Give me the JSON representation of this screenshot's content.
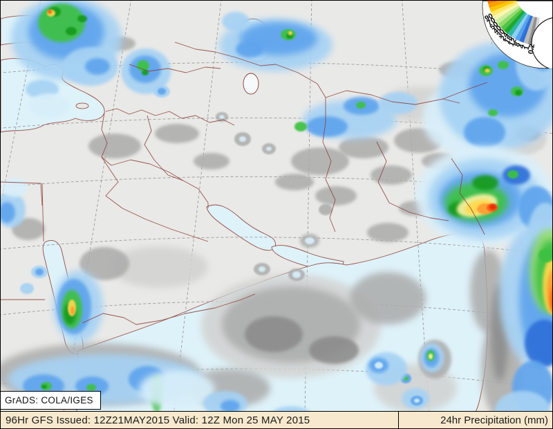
{
  "legend": {
    "tick_labels": [
      "90",
      "70",
      "50",
      "40",
      "30",
      "24",
      "18",
      "12",
      "8",
      "4",
      "1",
      "0.2"
    ],
    "band_colors": [
      "#6f0000",
      "#a30000",
      "#d40e00",
      "#ee4400",
      "#fc7300",
      "#ff9f00",
      "#ffc800",
      "#ffe76a",
      "#f9f6b0",
      "#cdeca0",
      "#93db6e",
      "#50c348",
      "#1ea92d",
      "#2fb7a6",
      "#8ed0f2",
      "#58a2ec",
      "#2d71d9",
      "#bcbcbc",
      "#909090",
      "#d8d8d8"
    ],
    "background": "#ffffff",
    "outline_color": "#000000",
    "label_color": "#000000"
  },
  "footer": {
    "credit": "GrADS: COLA/IGES",
    "issued": "96Hr GFS Issued: 12Z21MAY2015 Valid: 12Z Mon 25 MAY 2015",
    "product": "24hr Precipitation (mm)",
    "bar_color": "#f7e9cd",
    "text_color": "#1a1a1a"
  },
  "map": {
    "land_color": "#e9e9e7",
    "ocean_color": "#def2f9",
    "lake_color": "#f6fafa",
    "coast_color": "#8a3a32",
    "graticule_color": "#9b9b9b",
    "palette": {
      "g1": "#d2d2d0",
      "g2": "#ababab",
      "g3": "#8a8a8a",
      "b0": "#d8effa",
      "b1": "#a6d2f4",
      "b2": "#5fa4ed",
      "b3": "#2e6fd9",
      "gr1": "#9bdf70",
      "gr2": "#3ec142",
      "gr3": "#149a1c",
      "y1": "#f9f3a2",
      "y2": "#ffd84e",
      "o1": "#ff9c32",
      "o2": "#f85d10",
      "r1": "#e92c0c",
      "r2": "#b00000"
    },
    "precip_blobs": [
      [
        "g1",
        420,
        470,
        130,
        75
      ],
      [
        "g2",
        420,
        468,
        100,
        55
      ],
      [
        "g3",
        395,
        482,
        42,
        26
      ],
      [
        "g3",
        482,
        505,
        36,
        20
      ],
      [
        "g2",
        560,
        430,
        55,
        38
      ],
      [
        "g1",
        230,
        385,
        70,
        30
      ],
      [
        "g2",
        150,
        380,
        36,
        24
      ],
      [
        "g2",
        40,
        330,
        24,
        16
      ],
      [
        "g2",
        165,
        210,
        38,
        18
      ],
      [
        "g2",
        255,
        192,
        32,
        14
      ],
      [
        "g2",
        305,
        232,
        26,
        12
      ],
      [
        "g2",
        462,
        232,
        42,
        20
      ],
      [
        "g2",
        525,
        212,
        36,
        16
      ],
      [
        "g2",
        565,
        252,
        30,
        14
      ],
      [
        "g2",
        605,
        202,
        36,
        18
      ],
      [
        "g2",
        635,
        232,
        26,
        12
      ],
      [
        "g2",
        425,
        262,
        28,
        12
      ],
      [
        "g2",
        485,
        282,
        30,
        14
      ],
      [
        "g1",
        610,
        150,
        60,
        26
      ],
      [
        "g2",
        660,
        100,
        26,
        12
      ],
      [
        "g2",
        175,
        62,
        20,
        10
      ],
      [
        "g1",
        750,
        200,
        40,
        24
      ],
      [
        "g3",
        762,
        192,
        18,
        10
      ],
      [
        "g2",
        560,
        335,
        30,
        14
      ],
      [
        "g2",
        600,
        300,
        24,
        11
      ],
      [
        "g2",
        705,
        420,
        26,
        60
      ],
      [
        "g2",
        725,
        530,
        30,
        75
      ],
      [
        "g3",
        722,
        480,
        13,
        70
      ],
      [
        "g2",
        140,
        540,
        150,
        45
      ],
      [
        "g2",
        330,
        560,
        60,
        28
      ],
      [
        "g1",
        600,
        560,
        60,
        35
      ],
      [
        "g2",
        628,
        518,
        24,
        28
      ],
      [
        "g2",
        350,
        200,
        12,
        10
      ],
      [
        "g2",
        388,
        214,
        10,
        8
      ],
      [
        "g2",
        320,
        168,
        9,
        7
      ],
      [
        "g2",
        378,
        388,
        12,
        9
      ],
      [
        "g2",
        428,
        396,
        12,
        9
      ],
      [
        "g2",
        447,
        347,
        14,
        10
      ],
      [
        "g2",
        470,
        302,
        10,
        8
      ],
      [
        "b0",
        680,
        170,
        70,
        55
      ],
      [
        "b1",
        722,
        138,
        88,
        78
      ],
      [
        "b2",
        733,
        122,
        56,
        46
      ],
      [
        "b2",
        700,
        190,
        30,
        22
      ],
      [
        "b1",
        775,
        90,
        30,
        40
      ],
      [
        "b2",
        785,
        75,
        20,
        26
      ],
      [
        "b1",
        95,
        55,
        80,
        60
      ],
      [
        "b2",
        95,
        45,
        55,
        40
      ],
      [
        "gr2",
        88,
        32,
        34,
        28
      ],
      [
        "gr3",
        78,
        16,
        9,
        7
      ],
      [
        "gr3",
        102,
        44,
        8,
        6
      ],
      [
        "gr3",
        118,
        26,
        7,
        5
      ],
      [
        "y2",
        73,
        18,
        6,
        5
      ],
      [
        "o2",
        71,
        16,
        3,
        3
      ],
      [
        "b1",
        130,
        95,
        40,
        28
      ],
      [
        "b2",
        140,
        95,
        18,
        12
      ],
      [
        "b1",
        60,
        128,
        24,
        14
      ],
      [
        "b0",
        70,
        152,
        30,
        18
      ],
      [
        "b1",
        210,
        102,
        36,
        33
      ],
      [
        "b2",
        209,
        99,
        23,
        20
      ],
      [
        "gr2",
        206,
        94,
        9,
        8
      ],
      [
        "gr3",
        209,
        104,
        5,
        4
      ],
      [
        "b1",
        233,
        131,
        12,
        9
      ],
      [
        "b2",
        233,
        131,
        6,
        5
      ],
      [
        "b1",
        398,
        64,
        82,
        38
      ],
      [
        "b2",
        402,
        55,
        56,
        24
      ],
      [
        "b1",
        340,
        30,
        20,
        14
      ],
      [
        "b2",
        360,
        70,
        20,
        12
      ],
      [
        "gr2",
        416,
        49,
        11,
        8
      ],
      [
        "gr3",
        418,
        51,
        5,
        4
      ],
      [
        "y2",
        419,
        47,
        3,
        3
      ],
      [
        "b1",
        505,
        172,
        68,
        28
      ],
      [
        "b2",
        472,
        182,
        30,
        15
      ],
      [
        "gr2",
        434,
        182,
        9,
        7
      ],
      [
        "b2",
        522,
        152,
        26,
        13
      ],
      [
        "gr2",
        521,
        151,
        7,
        5
      ],
      [
        "b1",
        575,
        148,
        28,
        16
      ],
      [
        "gr2",
        702,
        101,
        10,
        8
      ],
      [
        "gr2",
        727,
        93,
        8,
        6
      ],
      [
        "gr2",
        747,
        131,
        9,
        7
      ],
      [
        "gr2",
        712,
        162,
        7,
        5
      ],
      [
        "gr3",
        703,
        99,
        5,
        4
      ],
      [
        "gr3",
        749,
        133,
        5,
        4
      ],
      [
        "y2",
        704,
        101,
        4,
        3
      ],
      [
        "b0",
        700,
        282,
        100,
        72
      ],
      [
        "b1",
        700,
        286,
        82,
        58
      ],
      [
        "b2",
        694,
        287,
        60,
        40
      ],
      [
        "b2",
        775,
        300,
        26,
        32
      ],
      [
        "b1",
        788,
        332,
        24,
        40
      ],
      [
        "gr2",
        688,
        291,
        46,
        28
      ],
      [
        "gr3",
        664,
        301,
        17,
        11
      ],
      [
        "gr3",
        701,
        263,
        19,
        11
      ],
      [
        "y1",
        689,
        296,
        30,
        15,
        -15
      ],
      [
        "y2",
        691,
        298,
        20,
        10,
        -15
      ],
      [
        "o1",
        701,
        301,
        12,
        8
      ],
      [
        "o2",
        711,
        299,
        8,
        6
      ],
      [
        "r1",
        712,
        298,
        5,
        4
      ],
      [
        "b3",
        746,
        252,
        20,
        14
      ],
      [
        "gr2",
        741,
        251,
        8,
        6
      ],
      [
        "b1",
        779,
        425,
        58,
        105
      ],
      [
        "b2",
        790,
        432,
        40,
        92
      ],
      [
        "gr1",
        793,
        390,
        28,
        60
      ],
      [
        "gr2",
        795,
        398,
        22,
        52
      ],
      [
        "y2",
        799,
        412,
        15,
        42
      ],
      [
        "o1",
        801,
        420,
        11,
        32
      ],
      [
        "o2",
        802,
        432,
        7,
        20
      ],
      [
        "r1",
        803,
        438,
        4,
        10
      ],
      [
        "gr2",
        790,
        368,
        12,
        10
      ],
      [
        "b3",
        786,
        495,
        28,
        34
      ],
      [
        "b2",
        770,
        560,
        30,
        40
      ],
      [
        "b1",
        755,
        592,
        40,
        28
      ],
      [
        "b1",
        624,
        516,
        17,
        21
      ],
      [
        "b2",
        623,
        516,
        11,
        14
      ],
      [
        "gr2",
        622,
        513,
        6,
        8
      ],
      [
        "y1",
        622,
        514,
        3,
        4
      ],
      [
        "b2",
        586,
        546,
        8,
        7
      ],
      [
        "gr2",
        586,
        546,
        4,
        3
      ],
      [
        "b1",
        558,
        532,
        30,
        24
      ],
      [
        "b2",
        547,
        527,
        14,
        11
      ],
      [
        "b0",
        547,
        527,
        6,
        5
      ],
      [
        "b1",
        600,
        575,
        20,
        15
      ],
      [
        "b2",
        602,
        578,
        9,
        7
      ],
      [
        "b0",
        602,
        578,
        4,
        3
      ],
      [
        "b1",
        112,
        442,
        36,
        52
      ],
      [
        "b2",
        106,
        442,
        25,
        40
      ],
      [
        "gr2",
        103,
        446,
        15,
        28
      ],
      [
        "gr3",
        100,
        452,
        9,
        16
      ],
      [
        "y2",
        103,
        444,
        6,
        12
      ],
      [
        "o1",
        104,
        448,
        3,
        6
      ],
      [
        "b1",
        56,
        392,
        12,
        9
      ],
      [
        "b2",
        56,
        392,
        6,
        5
      ],
      [
        "b1",
        38,
        416,
        10,
        8
      ],
      [
        "b1",
        150,
        547,
        140,
        36
      ],
      [
        "b2",
        62,
        557,
        30,
        17
      ],
      [
        "b2",
        132,
        557,
        24,
        14
      ],
      [
        "b2",
        212,
        547,
        27,
        19
      ],
      [
        "gr2",
        66,
        557,
        8,
        6
      ],
      [
        "gr2",
        131,
        559,
        7,
        5
      ],
      [
        "gr3",
        63,
        558,
        4,
        3
      ],
      [
        "gr2",
        226,
        568,
        9,
        26
      ],
      [
        "gr3",
        226,
        572,
        4,
        14
      ],
      [
        "b0",
        255,
        562,
        55,
        28
      ],
      [
        "b1",
        325,
        582,
        32,
        18
      ],
      [
        "b2",
        332,
        586,
        14,
        9
      ],
      [
        "b1",
        420,
        600,
        30,
        14
      ],
      [
        "b2",
        418,
        602,
        12,
        7
      ],
      [
        "b1",
        470,
        608,
        24,
        12
      ],
      [
        "gr2",
        468,
        610,
        6,
        5
      ],
      [
        "b1",
        14,
        302,
        22,
        26
      ],
      [
        "b2",
        9,
        306,
        12,
        15
      ],
      [
        "b0",
        20,
        270,
        18,
        14
      ],
      [
        "b0",
        350,
        200,
        5,
        4
      ],
      [
        "b0",
        388,
        214,
        4,
        3
      ],
      [
        "b0",
        378,
        388,
        5,
        4
      ],
      [
        "b0",
        428,
        396,
        6,
        5
      ],
      [
        "b0",
        447,
        347,
        7,
        5
      ],
      [
        "b0",
        320,
        168,
        4,
        3
      ]
    ]
  }
}
